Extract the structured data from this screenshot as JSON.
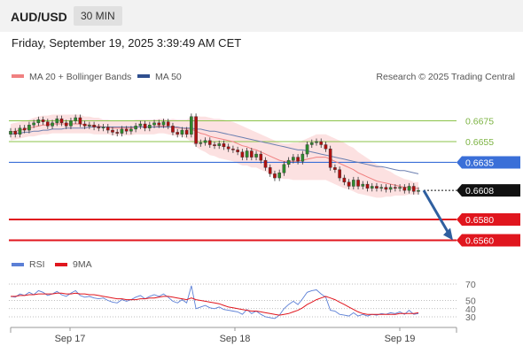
{
  "header": {
    "symbol": "AUD/USD",
    "timeframe": "30 MIN",
    "datetime": "Friday, September 19, 2025 3:39:49 AM CET"
  },
  "legend": {
    "items": [
      {
        "label": "MA 20 + Bollinger Bands",
        "color": "#f08080"
      },
      {
        "label": "MA 50",
        "color": "#2f4f8f"
      }
    ],
    "credit": "Research © 2025 Trading Central"
  },
  "chart_data": [
    {
      "type": "candlestick",
      "title": "",
      "x_ticks": [
        "Sep 17",
        "Sep 18",
        "Sep 19"
      ],
      "ylim": [
        0.655,
        0.6695
      ],
      "levels": [
        {
          "value": 0.6675,
          "label": "0.6675",
          "kind": "resistance",
          "color": "#8bc34a"
        },
        {
          "value": 0.6655,
          "label": "0.6655",
          "kind": "resistance",
          "color": "#8bc34a"
        },
        {
          "value": 0.6635,
          "label": "0.6635",
          "kind": "pivot",
          "color": "#3a6fd8"
        },
        {
          "value": 0.6608,
          "label": "0.6608",
          "kind": "last",
          "color": "#111111"
        },
        {
          "value": 0.658,
          "label": "0.6580",
          "kind": "support",
          "color": "#e0161e"
        },
        {
          "value": 0.656,
          "label": "0.6560",
          "kind": "support",
          "color": "#e0161e"
        }
      ],
      "close": [
        0.6665,
        0.6662,
        0.6668,
        0.6666,
        0.6671,
        0.6673,
        0.6676,
        0.6674,
        0.667,
        0.6673,
        0.6677,
        0.6673,
        0.667,
        0.6675,
        0.6678,
        0.6672,
        0.667,
        0.6671,
        0.6669,
        0.6668,
        0.6669,
        0.6666,
        0.6664,
        0.6663,
        0.6667,
        0.6665,
        0.6667,
        0.667,
        0.6672,
        0.6668,
        0.6671,
        0.6673,
        0.6671,
        0.6674,
        0.667,
        0.6664,
        0.6662,
        0.6666,
        0.6662,
        0.6679,
        0.6653,
        0.6654,
        0.6656,
        0.6652,
        0.6651,
        0.6653,
        0.665,
        0.6648,
        0.6647,
        0.6645,
        0.664,
        0.6646,
        0.664,
        0.6643,
        0.6637,
        0.663,
        0.6624,
        0.662,
        0.6625,
        0.6633,
        0.6637,
        0.664,
        0.6636,
        0.6643,
        0.6652,
        0.6654,
        0.6655,
        0.6652,
        0.6648,
        0.663,
        0.6628,
        0.662,
        0.6616,
        0.6612,
        0.6618,
        0.6612,
        0.6614,
        0.661,
        0.6612,
        0.661,
        0.6611,
        0.6609,
        0.6611,
        0.661,
        0.6611,
        0.6608,
        0.6612,
        0.6607,
        0.6608
      ],
      "ma20": [
        0.6664,
        0.6665,
        0.6666,
        0.6667,
        0.6668,
        0.6669,
        0.667,
        0.6671,
        0.6671,
        0.6672,
        0.6672,
        0.6672,
        0.6672,
        0.6672,
        0.6672,
        0.6672,
        0.6671,
        0.6671,
        0.667,
        0.667,
        0.6669,
        0.6669,
        0.6668,
        0.6668,
        0.6668,
        0.6668,
        0.6668,
        0.6669,
        0.6669,
        0.6669,
        0.6669,
        0.6669,
        0.667,
        0.667,
        0.6669,
        0.6669,
        0.6668,
        0.6668,
        0.6667,
        0.6667,
        0.6665,
        0.6663,
        0.6662,
        0.666,
        0.6659,
        0.6658,
        0.6657,
        0.6656,
        0.6655,
        0.6653,
        0.6651,
        0.665,
        0.6648,
        0.6647,
        0.6645,
        0.6643,
        0.6641,
        0.6639,
        0.6637,
        0.6636,
        0.6636,
        0.6636,
        0.6636,
        0.6637,
        0.6638,
        0.6639,
        0.664,
        0.664,
        0.664,
        0.6638,
        0.6636,
        0.6634,
        0.6632,
        0.663,
        0.6628,
        0.6625,
        0.6623,
        0.6621,
        0.6619,
        0.6617,
        0.6616,
        0.6615,
        0.6614,
        0.6613,
        0.6612,
        0.6611,
        0.6611,
        0.661,
        0.661
      ],
      "bb_width": [
        0.0008,
        0.0008,
        0.0008,
        0.0008,
        0.0008,
        0.0009,
        0.0009,
        0.0009,
        0.0009,
        0.0009,
        0.0009,
        0.0009,
        0.0009,
        0.0009,
        0.0009,
        0.0009,
        0.0008,
        0.0008,
        0.0008,
        0.0008,
        0.0007,
        0.0007,
        0.0007,
        0.0007,
        0.0007,
        0.0007,
        0.0007,
        0.0007,
        0.0007,
        0.0007,
        0.0007,
        0.0007,
        0.0007,
        0.0007,
        0.0007,
        0.0008,
        0.0008,
        0.0008,
        0.0009,
        0.0012,
        0.0015,
        0.0016,
        0.0017,
        0.0018,
        0.0018,
        0.0019,
        0.0019,
        0.0019,
        0.0019,
        0.0019,
        0.0019,
        0.0018,
        0.0018,
        0.0017,
        0.0017,
        0.0017,
        0.0017,
        0.0017,
        0.0017,
        0.0017,
        0.0017,
        0.0018,
        0.0018,
        0.0019,
        0.002,
        0.0021,
        0.0022,
        0.0022,
        0.0022,
        0.0022,
        0.0022,
        0.0022,
        0.0022,
        0.0021,
        0.0021,
        0.002,
        0.0019,
        0.0018,
        0.0017,
        0.0016,
        0.0015,
        0.0013,
        0.0012,
        0.001,
        0.0009,
        0.0008,
        0.0007,
        0.0006,
        0.0006
      ],
      "ma50": [
        0.6662,
        0.6663,
        0.6663,
        0.6664,
        0.6664,
        0.6665,
        0.6665,
        0.6666,
        0.6666,
        0.6667,
        0.6667,
        0.6667,
        0.6668,
        0.6668,
        0.6668,
        0.6668,
        0.6668,
        0.6669,
        0.6669,
        0.6669,
        0.6669,
        0.6669,
        0.6669,
        0.6669,
        0.6669,
        0.6669,
        0.6669,
        0.6669,
        0.6669,
        0.6669,
        0.6669,
        0.6669,
        0.6669,
        0.6669,
        0.6669,
        0.6669,
        0.6669,
        0.6668,
        0.6668,
        0.6668,
        0.6667,
        0.6667,
        0.6666,
        0.6665,
        0.6665,
        0.6664,
        0.6663,
        0.6662,
        0.6661,
        0.666,
        0.6659,
        0.6658,
        0.6657,
        0.6656,
        0.6655,
        0.6654,
        0.6653,
        0.6652,
        0.6651,
        0.665,
        0.6649,
        0.6648,
        0.6647,
        0.6647,
        0.6646,
        0.6645,
        0.6644,
        0.6643,
        0.6642,
        0.6641,
        0.664,
        0.6639,
        0.6638,
        0.6637,
        0.6636,
        0.6635,
        0.6634,
        0.6633,
        0.6632,
        0.6631,
        0.6631,
        0.663,
        0.6629,
        0.6628,
        0.6627,
        0.6627,
        0.6626,
        0.6625,
        0.6624
      ],
      "projection": {
        "from": 0.6608,
        "to": 0.656
      }
    },
    {
      "type": "line",
      "title": "",
      "legend": [
        {
          "label": "RSI",
          "color": "#5b7fd6"
        },
        {
          "label": "9MA",
          "color": "#e0161e"
        }
      ],
      "ylim": [
        25,
        75
      ],
      "y_ticks": [
        70,
        50,
        40,
        30
      ],
      "rsi": [
        55,
        54,
        58,
        56,
        60,
        57,
        62,
        60,
        56,
        58,
        61,
        57,
        55,
        59,
        62,
        56,
        54,
        55,
        53,
        52,
        53,
        50,
        48,
        47,
        51,
        49,
        51,
        54,
        56,
        52,
        55,
        57,
        55,
        58,
        54,
        49,
        47,
        51,
        47,
        68,
        40,
        42,
        44,
        41,
        40,
        42,
        39,
        38,
        37,
        36,
        33,
        39,
        34,
        37,
        33,
        30,
        29,
        28,
        32,
        40,
        45,
        49,
        45,
        52,
        60,
        62,
        63,
        58,
        54,
        38,
        37,
        33,
        32,
        31,
        35,
        31,
        33,
        31,
        33,
        32,
        34,
        33,
        35,
        34,
        36,
        33,
        38,
        33,
        34
      ],
      "ma9": [
        55,
        55,
        56,
        56,
        57,
        57,
        58,
        58,
        58,
        58,
        59,
        59,
        58,
        58,
        59,
        58,
        58,
        57,
        57,
        56,
        55,
        54,
        53,
        52,
        52,
        51,
        51,
        51,
        52,
        52,
        53,
        53,
        54,
        55,
        55,
        54,
        53,
        52,
        51,
        53,
        51,
        50,
        49,
        48,
        47,
        46,
        44,
        42,
        41,
        40,
        39,
        38,
        37,
        37,
        36,
        35,
        34,
        33,
        32,
        33,
        34,
        36,
        38,
        41,
        45,
        48,
        51,
        53,
        55,
        53,
        51,
        48,
        45,
        42,
        39,
        36,
        34,
        33,
        33,
        33,
        33,
        33,
        33,
        33,
        34,
        34,
        34,
        34,
        35
      ]
    }
  ]
}
